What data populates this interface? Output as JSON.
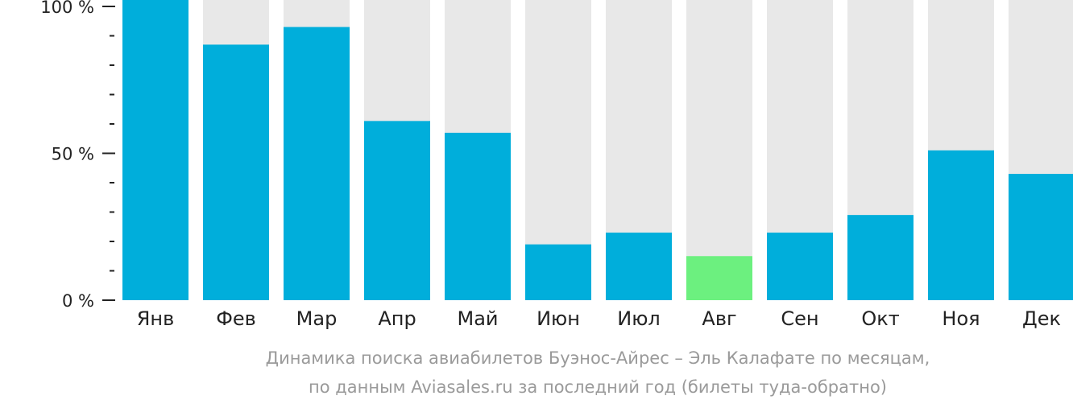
{
  "chart_data": {
    "type": "bar",
    "categories": [
      "Янв",
      "Фев",
      "Мар",
      "Апр",
      "Май",
      "Июн",
      "Июл",
      "Авг",
      "Сен",
      "Окт",
      "Ноя",
      "Дек"
    ],
    "values": [
      100,
      87,
      93,
      61,
      57,
      19,
      23,
      15,
      23,
      29,
      51,
      43
    ],
    "highlight_index": 7,
    "ylim": [
      0,
      100
    ],
    "yticks": [
      {
        "value": 0,
        "label": "0 %"
      },
      {
        "value": 50,
        "label": "50 %"
      },
      {
        "value": 100,
        "label": "100 %"
      }
    ],
    "minor_ticks": [
      10,
      20,
      30,
      40,
      60,
      70,
      80,
      90
    ],
    "caption": [
      "Динамика поиска авиабилетов Буэнос-Айрес – Эль Калафате по месяцам,",
      "по данным Aviasales.ru за последний год (билеты туда-обратно)"
    ],
    "colors": {
      "bar": "#00aedb",
      "highlight": "#6cf07f",
      "background_bar": "#e8e8e8",
      "axis": "#222222",
      "caption": "#9a9a9a"
    }
  }
}
